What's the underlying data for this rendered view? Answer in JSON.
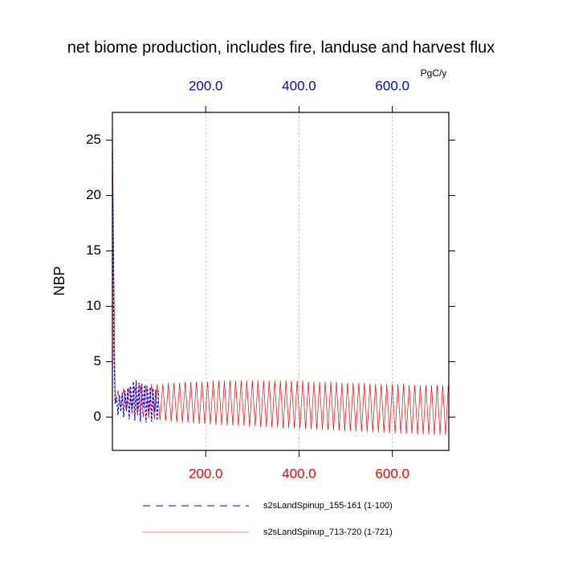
{
  "chart_data": {
    "type": "line",
    "title": "net biome production, includes fire, landuse and harvest flux",
    "y_label": "NBP",
    "unit_label": "PgC/y",
    "xlim": [
      0,
      721
    ],
    "ylim": [
      -3,
      27.5
    ],
    "xticks": [
      {
        "value": 200,
        "label": "200.0"
      },
      {
        "value": 400,
        "label": "400.0"
      },
      {
        "value": 600,
        "label": "600.0"
      }
    ],
    "xtick_color": "#ff0000",
    "x2lim": [
      0,
      721
    ],
    "x2ticks": [
      {
        "value": 200,
        "label": "200.0"
      },
      {
        "value": 400,
        "label": "400.0"
      },
      {
        "value": 600,
        "label": "600.0"
      }
    ],
    "x2tick_color": "#0000ff",
    "yticks": [
      0,
      5,
      10,
      15,
      20,
      25
    ],
    "grid": true,
    "legend": "bottom",
    "series": [
      {
        "name": "s2sLandSpinup_155-161 (1-100)",
        "color": "#0000ff",
        "dash": true,
        "axis": "x2",
        "x": [
          0,
          3,
          6,
          9,
          12,
          15,
          18,
          21,
          24,
          27,
          30,
          33,
          36,
          39,
          42,
          45,
          48,
          51,
          54,
          57,
          60,
          63,
          66,
          69,
          72,
          75,
          78,
          81,
          84,
          87,
          90,
          93,
          96,
          99
        ],
        "values": [
          26,
          6,
          1.2,
          1.8,
          0.2,
          2.0,
          0.5,
          2.2,
          0.0,
          2.4,
          0.6,
          2.6,
          -0.2,
          2.8,
          0.8,
          3.2,
          -0.3,
          3.3,
          0.5,
          3.1,
          -0.4,
          3.0,
          0.9,
          2.9,
          -0.5,
          2.8,
          0.3,
          2.7,
          -0.4,
          2.6,
          0.5,
          2.5,
          -0.3,
          2.4
        ]
      },
      {
        "name": "s2sLandSpinup_713-720 (1-721)",
        "color": "#ff0000",
        "dash": false,
        "x": [
          0,
          6,
          12,
          18,
          24,
          30,
          36,
          42,
          48,
          54,
          60,
          66,
          72,
          78,
          84,
          90,
          96,
          102,
          108,
          114,
          120,
          126,
          132,
          138,
          144,
          150,
          156,
          162,
          168,
          174,
          180,
          186,
          192,
          198,
          204,
          210,
          216,
          222,
          228,
          234,
          240,
          246,
          252,
          258,
          264,
          270,
          276,
          282,
          288,
          294,
          300,
          306,
          312,
          318,
          324,
          330,
          336,
          342,
          348,
          354,
          360,
          366,
          372,
          378,
          384,
          390,
          396,
          402,
          408,
          414,
          420,
          426,
          432,
          438,
          444,
          450,
          456,
          462,
          468,
          474,
          480,
          486,
          492,
          498,
          504,
          510,
          516,
          522,
          528,
          534,
          540,
          546,
          552,
          558,
          564,
          570,
          576,
          582,
          588,
          594,
          600,
          606,
          612,
          618,
          624,
          630,
          636,
          642,
          648,
          654,
          660,
          666,
          672,
          678,
          684,
          690,
          696,
          702,
          708,
          714,
          720
        ],
        "values": [
          26,
          1.2,
          2.4,
          0.9,
          2.6,
          0.5,
          2.7,
          0.3,
          2.8,
          0.1,
          2.9,
          0.0,
          2.9,
          -0.1,
          3.0,
          -0.2,
          3.0,
          -0.3,
          3.0,
          -0.35,
          3.1,
          -0.4,
          3.1,
          -0.45,
          3.1,
          -0.5,
          3.2,
          -0.5,
          3.2,
          -0.55,
          3.2,
          -0.6,
          3.2,
          -0.6,
          3.2,
          -0.65,
          3.3,
          -0.7,
          3.3,
          -0.7,
          3.3,
          -0.75,
          3.3,
          -0.75,
          3.3,
          -0.8,
          3.3,
          -0.8,
          3.3,
          -0.85,
          3.3,
          -0.85,
          3.3,
          -0.9,
          3.3,
          -0.9,
          3.3,
          -0.95,
          3.3,
          -0.95,
          3.3,
          -1.0,
          3.3,
          -1.0,
          3.3,
          -1.0,
          3.3,
          -1.05,
          3.3,
          -1.05,
          3.2,
          -1.1,
          3.2,
          -1.1,
          3.2,
          -1.15,
          3.2,
          -1.15,
          3.2,
          -1.2,
          3.2,
          -1.2,
          3.1,
          -1.25,
          3.1,
          -1.25,
          3.1,
          -1.3,
          3.1,
          -1.3,
          3.1,
          -1.35,
          3.0,
          -1.35,
          3.0,
          -1.4,
          3.0,
          -1.4,
          3.0,
          -1.45,
          3.0,
          -1.45,
          3.0,
          -1.5,
          3.0,
          -1.5,
          2.9,
          -1.5,
          2.9,
          -1.55,
          2.9,
          -1.55,
          2.9,
          -1.55,
          2.9,
          -1.6,
          2.9,
          -1.6,
          2.9,
          -1.6,
          2.9
        ]
      }
    ]
  }
}
